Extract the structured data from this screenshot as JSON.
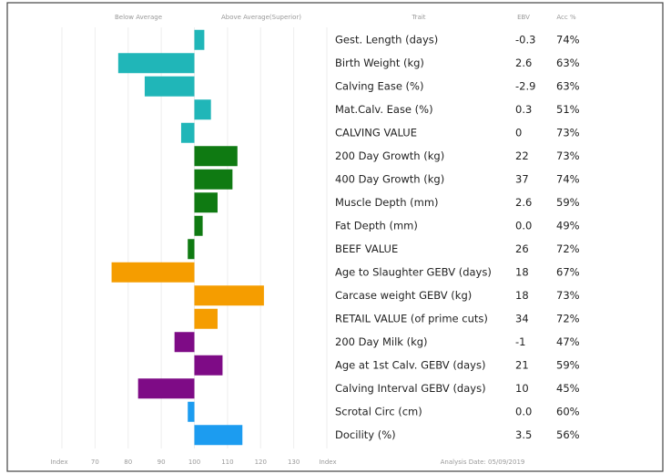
{
  "chart_data": {
    "type": "bar",
    "header": {
      "below": "Below Average",
      "above": "Above Average(Superior)",
      "trait": "Trait",
      "ebv": "EBV",
      "acc": "Acc %"
    },
    "categories": [
      "Gest. Length (days)",
      "Birth Weight (kg)",
      "Calving Ease (%)",
      "Mat.Calv. Ease (%)",
      "CALVING VALUE",
      "200 Day Growth (kg)",
      "400 Day Growth (kg)",
      "Muscle Depth (mm)",
      "Fat Depth (mm)",
      "BEEF VALUE",
      "Age to Slaughter GEBV (days)",
      "Carcase weight GEBV (kg)",
      "RETAIL VALUE (of prime cuts)",
      "200 Day Milk (kg)",
      "Age at 1st Calv. GEBV (days)",
      "Calving Interval GEBV (days)",
      "Scrotal Circ (cm)",
      "Docility (%)"
    ],
    "values": [
      103,
      77,
      85,
      105,
      96,
      113,
      111.5,
      107,
      102.5,
      98,
      75,
      121,
      107,
      94,
      108.5,
      83,
      98,
      114.5
    ],
    "colors": [
      "#20b6b8",
      "#20b6b8",
      "#20b6b8",
      "#20b6b8",
      "#20b6b8",
      "#0f7a12",
      "#0f7a12",
      "#0f7a12",
      "#0f7a12",
      "#0f7a12",
      "#f59d00",
      "#f59d00",
      "#f59d00",
      "#7e0b86",
      "#7e0b86",
      "#7e0b86",
      "#1c9cf0",
      "#1c9cf0"
    ],
    "columns": [
      {
        "name": "EBV",
        "values": [
          -0.3,
          2.6,
          -2.9,
          0.3,
          0,
          22,
          37,
          2.6,
          0,
          26,
          18,
          18,
          34,
          -1,
          21,
          10,
          0,
          3.5
        ],
        "value_labels": [
          "-0.3",
          "2.6",
          "-2.9",
          "0.3",
          "0",
          "22",
          "37",
          "2.6",
          "0.0",
          "26",
          "18",
          "18",
          "34",
          "-1",
          "21",
          "10",
          "0.0",
          "3.5"
        ]
      },
      {
        "name": "Acc %",
        "values": [
          74,
          63,
          63,
          51,
          73,
          73,
          74,
          59,
          49,
          72,
          67,
          73,
          72,
          47,
          59,
          45,
          60,
          56
        ],
        "value_labels": [
          "74%",
          "63%",
          "63%",
          "51%",
          "73%",
          "73%",
          "74%",
          "59%",
          "49%",
          "72%",
          "67%",
          "73%",
          "72%",
          "47%",
          "59%",
          "45%",
          "60%",
          "56%"
        ]
      }
    ],
    "xlabel": "Index",
    "xlim": [
      60,
      140
    ],
    "xticks": [
      70,
      80,
      90,
      100,
      110,
      120,
      130
    ],
    "baseline": 100,
    "footer": "Analysis Date: 05/09/2019",
    "grid": true
  }
}
